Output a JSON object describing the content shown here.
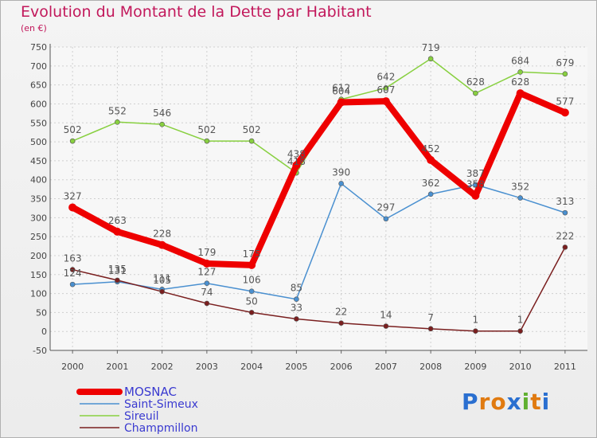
{
  "title": "Evolution du Montant de la Dette par Habitant",
  "unit": "(en €)",
  "logo": "Proxiti",
  "colors": {
    "title": "#c2185b",
    "legend_text": "#3a3ad0"
  },
  "chart_data": {
    "type": "line",
    "x": [
      "2000",
      "2001",
      "2002",
      "2003",
      "2004",
      "2005",
      "2006",
      "2007",
      "2008",
      "2009",
      "2010",
      "2011"
    ],
    "ylim": [
      -50,
      750
    ],
    "yticks": [
      -50,
      0,
      50,
      100,
      150,
      200,
      250,
      300,
      350,
      400,
      450,
      500,
      550,
      600,
      650,
      700,
      750
    ],
    "grid": true,
    "legend_position": "bottom-left",
    "series": [
      {
        "name": "MOSNAC",
        "color": "#ee0000",
        "values": [
          327,
          263,
          228,
          179,
          175,
          438,
          604,
          607,
          452,
          358,
          628,
          577
        ]
      },
      {
        "name": "Saint-Simeux",
        "color": "#4a90d0",
        "values": [
          124,
          131,
          111,
          127,
          106,
          85,
          390,
          297,
          362,
          387,
          352,
          313
        ]
      },
      {
        "name": "Sireuil",
        "color": "#88d040",
        "values": [
          502,
          552,
          546,
          502,
          502,
          418,
          612,
          642,
          719,
          628,
          684,
          679
        ]
      },
      {
        "name": "Champmillon",
        "color": "#7a1f1f",
        "values": [
          163,
          135,
          105,
          74,
          50,
          33,
          22,
          14,
          7,
          1,
          1,
          222
        ]
      }
    ]
  }
}
